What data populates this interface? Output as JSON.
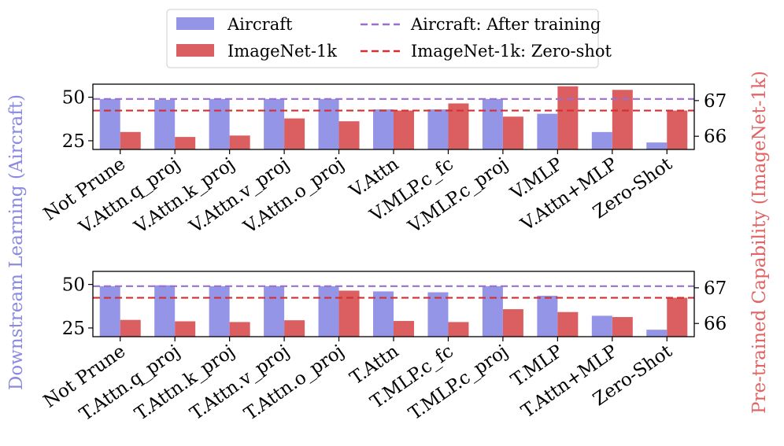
{
  "colors": {
    "aircraft": "#9595e8",
    "imagenet": "#db5f60",
    "aircraft_line": "#9b6fcd",
    "imagenet_line": "#d62f2f",
    "left_label": "#8a8ae0",
    "right_label": "#e06565"
  },
  "legend": {
    "aircraft_bar": "Aircraft",
    "imagenet_bar": "ImageNet-1k",
    "aircraft_line": "Aircraft: After training",
    "imagenet_line": "ImageNet-1k: Zero-shot"
  },
  "axes": {
    "left_label": "Downstream Learning (Aircraft)",
    "right_label": "Pre-trained Capability (ImageNet-1k)"
  },
  "chart_data": [
    {
      "type": "bar",
      "panel": "top",
      "categories": [
        "Not Prune",
        "V.Attn.q_proj",
        "V.Attn.k_proj",
        "V.Attn.v_proj",
        "V.Attn.o_proj",
        "V.Attn",
        "V.MLP.c_fc",
        "V.MLP.c_proj",
        "V.MLP",
        "V.Attn+MLP",
        "Zero-Shot"
      ],
      "series": [
        {
          "name": "Aircraft",
          "axis": "left",
          "values": [
            49,
            48.5,
            49,
            49,
            49,
            43,
            43,
            49,
            40.5,
            30,
            24
          ]
        },
        {
          "name": "ImageNet-1k",
          "axis": "right",
          "values": [
            66.12,
            65.98,
            66.02,
            66.5,
            66.42,
            66.72,
            66.92,
            66.55,
            67.4,
            67.3,
            66.72
          ]
        }
      ],
      "reference_lines": {
        "aircraft_after_training": 49,
        "imagenet_zero_shot": 66.72
      },
      "left_ylim": [
        20,
        57.5
      ],
      "left_yticks": [
        25,
        50
      ],
      "right_ylim": [
        65.63,
        67.46
      ],
      "right_yticks": [
        66,
        67
      ]
    },
    {
      "type": "bar",
      "panel": "bottom",
      "categories": [
        "Not Prune",
        "T.Attn.q_proj",
        "T.Attn.k_proj",
        "T.Attn.v_proj",
        "T.Attn.o_proj",
        "T.Attn",
        "T.MLP.c_fc",
        "T.MLP.c_proj",
        "T.MLP",
        "T.Attn+MLP",
        "Zero-Shot"
      ],
      "series": [
        {
          "name": "Aircraft",
          "axis": "left",
          "values": [
            49,
            49.5,
            49,
            49,
            49,
            46,
            45.5,
            49,
            43.5,
            32,
            24
          ]
        },
        {
          "name": "ImageNet-1k",
          "axis": "right",
          "values": [
            66.1,
            66.06,
            66.04,
            66.09,
            66.92,
            66.07,
            66.04,
            66.4,
            66.32,
            66.18,
            66.72
          ]
        }
      ],
      "reference_lines": {
        "aircraft_after_training": 49,
        "imagenet_zero_shot": 66.72
      },
      "left_ylim": [
        20,
        57.5
      ],
      "left_yticks": [
        25,
        50
      ],
      "right_ylim": [
        65.63,
        67.46
      ],
      "right_yticks": [
        66,
        67
      ]
    }
  ]
}
